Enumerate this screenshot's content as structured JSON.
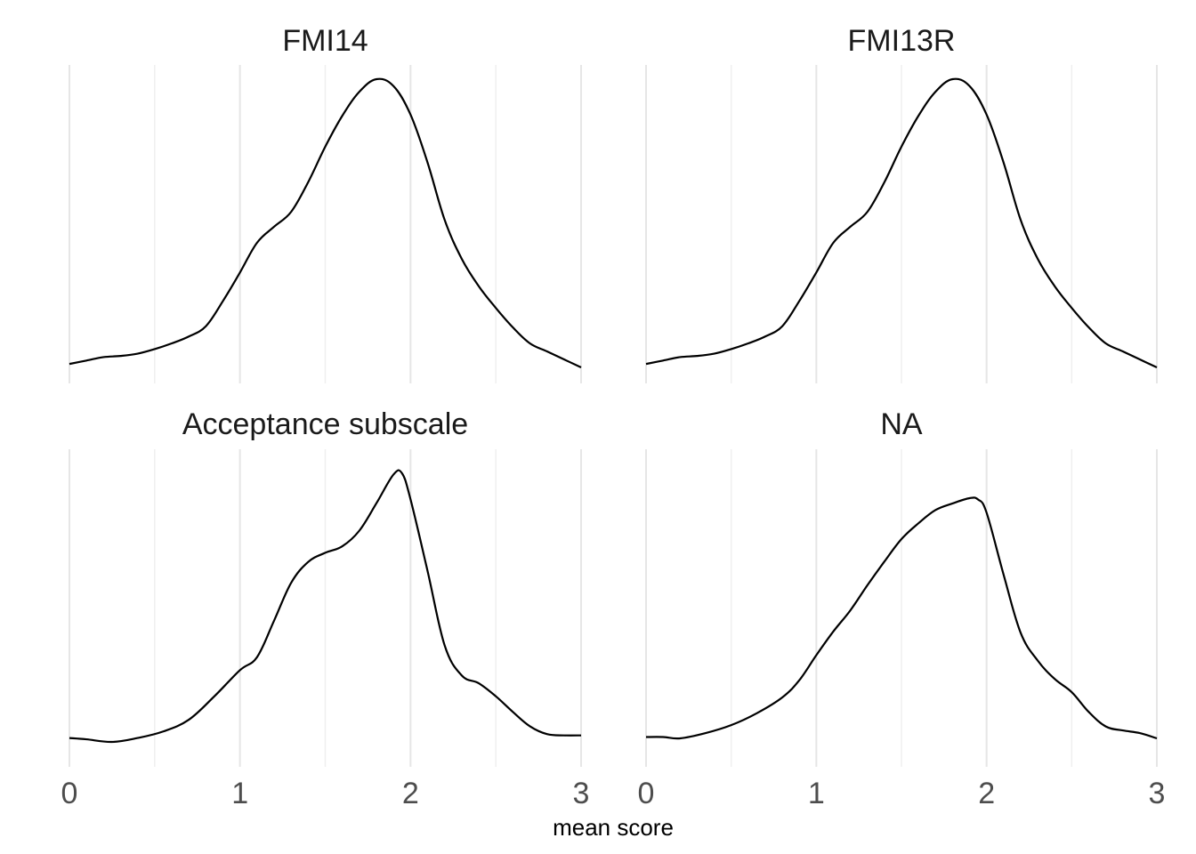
{
  "chart_data": {
    "type": "line",
    "subtype": "density",
    "xlabel": "mean score",
    "ylabel": "",
    "xlim": [
      0,
      3
    ],
    "xticks": [
      "0",
      "1",
      "2",
      "3"
    ],
    "minor_grid": [
      0.5,
      1.5,
      2.5
    ],
    "grid": true,
    "y_axis_shown": false,
    "line_color": "#000000",
    "panels": [
      {
        "title": "FMI14",
        "x": [
          0.0,
          0.1,
          0.2,
          0.3,
          0.4,
          0.5,
          0.6,
          0.7,
          0.8,
          0.9,
          1.0,
          1.1,
          1.2,
          1.3,
          1.4,
          1.5,
          1.6,
          1.7,
          1.8,
          1.9,
          2.0,
          2.1,
          2.2,
          2.3,
          2.4,
          2.5,
          2.6,
          2.7,
          2.8,
          2.9,
          3.0
        ],
        "y": [
          0.03,
          0.06,
          0.09,
          0.1,
          0.12,
          0.16,
          0.21,
          0.27,
          0.36,
          0.58,
          0.83,
          1.09,
          1.23,
          1.36,
          1.62,
          1.93,
          2.2,
          2.41,
          2.52,
          2.46,
          2.21,
          1.79,
          1.29,
          0.95,
          0.71,
          0.52,
          0.35,
          0.21,
          0.14,
          0.07,
          0.0
        ]
      },
      {
        "title": "FMI13R",
        "x": [
          0.0,
          0.1,
          0.2,
          0.3,
          0.4,
          0.5,
          0.6,
          0.7,
          0.8,
          0.9,
          1.0,
          1.1,
          1.2,
          1.3,
          1.4,
          1.5,
          1.6,
          1.7,
          1.8,
          1.9,
          2.0,
          2.1,
          2.2,
          2.3,
          2.4,
          2.5,
          2.6,
          2.7,
          2.8,
          2.9,
          3.0
        ],
        "y": [
          0.03,
          0.06,
          0.09,
          0.1,
          0.12,
          0.16,
          0.21,
          0.27,
          0.36,
          0.58,
          0.83,
          1.09,
          1.23,
          1.36,
          1.62,
          1.93,
          2.2,
          2.41,
          2.52,
          2.46,
          2.21,
          1.79,
          1.29,
          0.95,
          0.71,
          0.52,
          0.35,
          0.21,
          0.14,
          0.07,
          0.0
        ]
      },
      {
        "title": "Acceptance subscale",
        "x": [
          0.0,
          0.1,
          0.25,
          0.4,
          0.55,
          0.7,
          0.85,
          1.0,
          1.1,
          1.2,
          1.3,
          1.4,
          1.5,
          1.6,
          1.7,
          1.8,
          1.9,
          1.95,
          2.0,
          2.1,
          2.2,
          2.3,
          2.4,
          2.5,
          2.6,
          2.7,
          2.8,
          2.9,
          3.0
        ],
        "y": [
          0.03,
          0.02,
          0.0,
          0.03,
          0.08,
          0.17,
          0.35,
          0.55,
          0.65,
          0.93,
          1.22,
          1.38,
          1.45,
          1.5,
          1.62,
          1.83,
          2.05,
          2.06,
          1.86,
          1.31,
          0.74,
          0.51,
          0.45,
          0.35,
          0.23,
          0.12,
          0.06,
          0.05,
          0.05
        ]
      },
      {
        "title": "NA",
        "x": [
          0.0,
          0.1,
          0.2,
          0.35,
          0.5,
          0.65,
          0.8,
          0.9,
          1.0,
          1.1,
          1.2,
          1.3,
          1.4,
          1.5,
          1.6,
          1.7,
          1.8,
          1.9,
          1.95,
          2.0,
          2.1,
          2.2,
          2.3,
          2.4,
          2.5,
          2.6,
          2.7,
          2.8,
          2.9,
          3.0
        ],
        "y": [
          0.01,
          0.01,
          0.0,
          0.04,
          0.1,
          0.19,
          0.31,
          0.44,
          0.63,
          0.81,
          0.97,
          1.16,
          1.34,
          1.51,
          1.63,
          1.73,
          1.78,
          1.82,
          1.81,
          1.71,
          1.24,
          0.8,
          0.59,
          0.45,
          0.35,
          0.2,
          0.09,
          0.06,
          0.04,
          0.0
        ]
      }
    ]
  }
}
